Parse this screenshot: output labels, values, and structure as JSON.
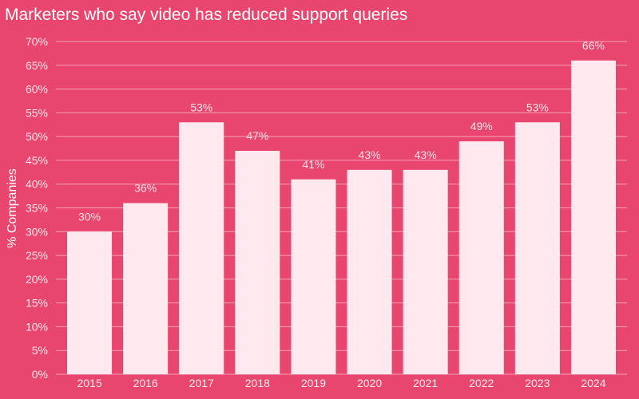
{
  "colors": {
    "background": "#e8456f",
    "bar": "#ffe9ee",
    "grid": "#f3a0b5",
    "text": "#ffffff"
  },
  "chart_data": {
    "type": "bar",
    "title": "Marketers who say video has reduced support queries",
    "xlabel": "",
    "ylabel": "% Companies",
    "categories": [
      "2015",
      "2016",
      "2017",
      "2018",
      "2019",
      "2020",
      "2021",
      "2022",
      "2023",
      "2024"
    ],
    "values": [
      30,
      36,
      53,
      47,
      41,
      43,
      43,
      49,
      53,
      66
    ],
    "value_labels": [
      "30%",
      "36%",
      "53%",
      "47%",
      "41%",
      "43%",
      "43%",
      "49%",
      "53%",
      "66%"
    ],
    "ylim": [
      0,
      70
    ],
    "y_ticks": [
      0,
      5,
      10,
      15,
      20,
      25,
      30,
      35,
      40,
      45,
      50,
      55,
      60,
      65,
      70
    ],
    "y_tick_labels": [
      "0%",
      "5%",
      "10%",
      "15%",
      "20%",
      "25%",
      "30%",
      "35%",
      "40%",
      "45%",
      "50%",
      "55%",
      "60%",
      "65%",
      "70%"
    ],
    "grid": true,
    "legend": "none"
  }
}
